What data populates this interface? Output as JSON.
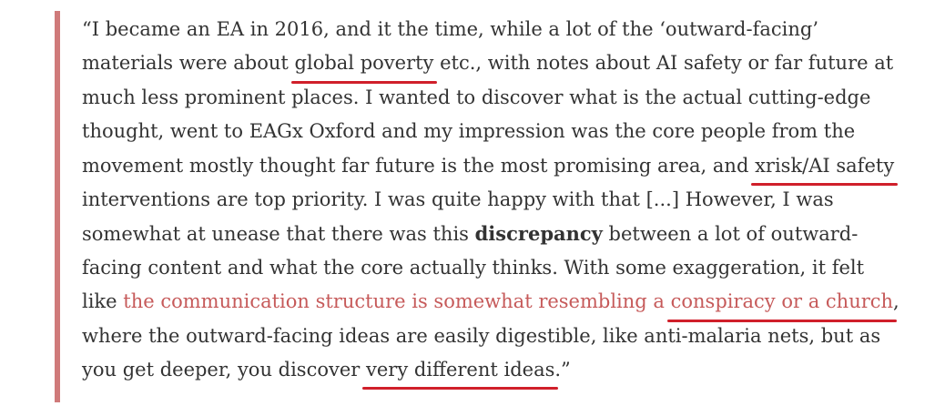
{
  "quote": {
    "l1": "“I became an EA in 2016, and it the time, while a lot of the ‘outward-facing’",
    "l2a": "materials were about ",
    "l2u": "global poverty",
    "l2b": " etc., with notes about AI safety or far future at",
    "l3": "much less prominent places. I wanted to discover what is the actual cutting-edge",
    "l4": "thought, went to EAGx Oxford and my impression was the core people from the",
    "l5a": "movement mostly thought far future is the most promising area, and ",
    "l5u": "xrisk/AI safety",
    "l6": "interventions are top priority. I was quite happy with that [...] However, I was",
    "l7a": "somewhat at unease that there was this ",
    "l7b": "discrepancy",
    "l7c": " between a lot of outward-",
    "l8": "facing content and what the core actually thinks. With some exaggeration, it felt",
    "l9a": "like ",
    "l9e": "the communication structure is somewhat resembling a ",
    "l9u": "conspiracy or a church",
    "l9b": ",",
    "l10": "where the outward-facing ideas are easily digestible, like anti-malaria nets, but as",
    "l11a": "you get deeper, you discover ",
    "l11u": "very different ideas",
    "l11b": ".”"
  },
  "colors": {
    "bar": "#cf7a7a",
    "underline": "#d01f2a",
    "emphasis": "#c65a5a",
    "text": "#333333"
  }
}
